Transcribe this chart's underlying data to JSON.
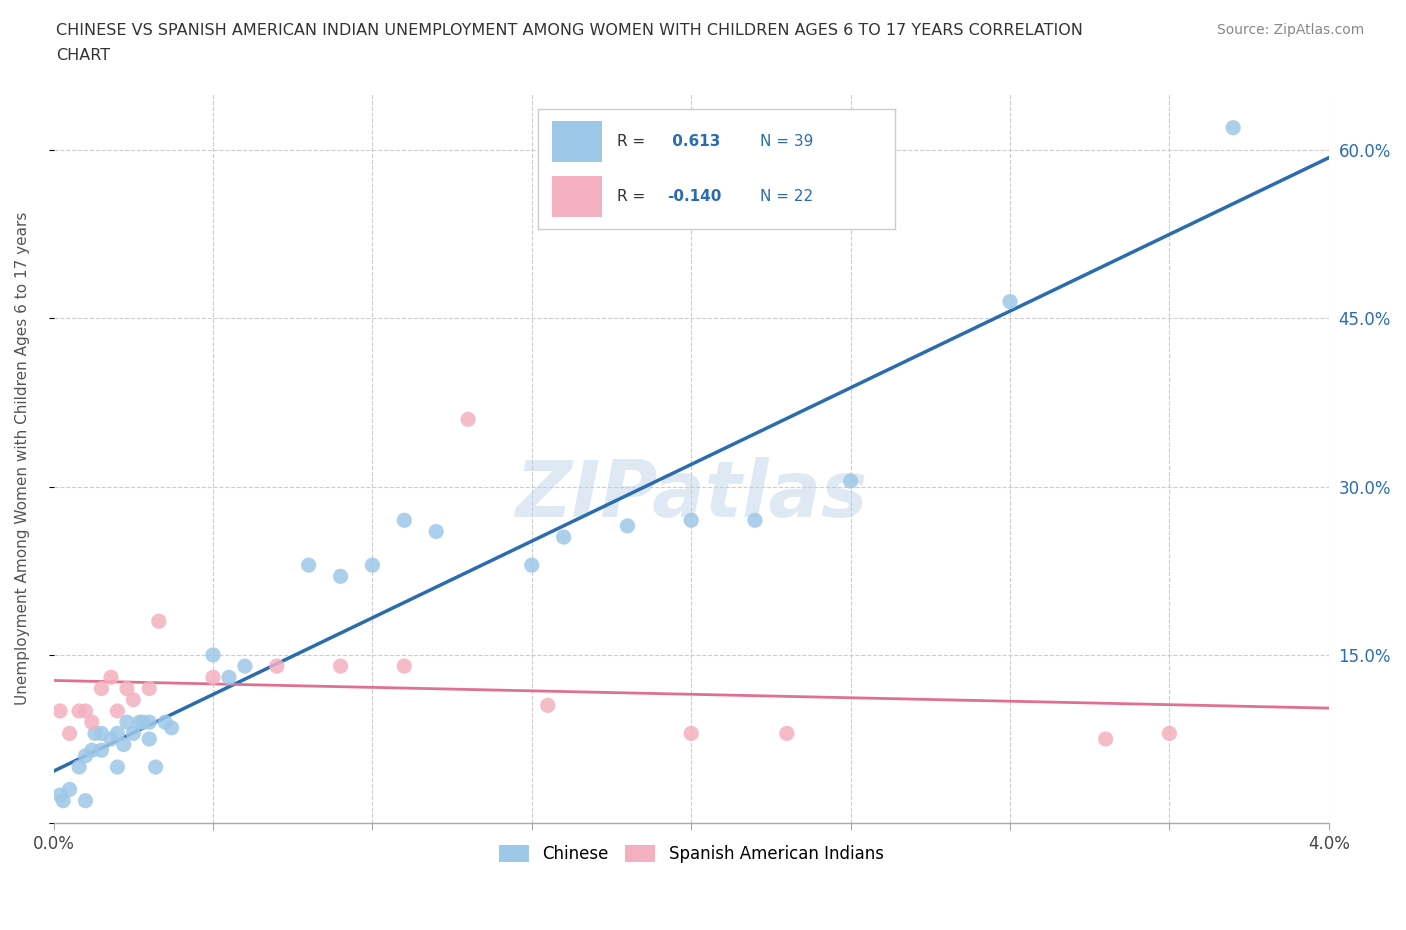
{
  "title": "CHINESE VS SPANISH AMERICAN INDIAN UNEMPLOYMENT AMONG WOMEN WITH CHILDREN AGES 6 TO 17 YEARS CORRELATION\nCHART",
  "source": "Source: ZipAtlas.com",
  "ylabel": "Unemployment Among Women with Children Ages 6 to 17 years",
  "xlim": [
    0.0,
    0.04
  ],
  "ylim": [
    0.0,
    0.65
  ],
  "xticks": [
    0.0,
    0.005,
    0.01,
    0.015,
    0.02,
    0.025,
    0.03,
    0.035,
    0.04
  ],
  "xtick_labels": [
    "0.0%",
    "",
    "",
    "",
    "",
    "",
    "",
    "",
    "4.0%"
  ],
  "ytick_positions": [
    0.0,
    0.15,
    0.3,
    0.45,
    0.6
  ],
  "ytick_labels": [
    "",
    "15.0%",
    "30.0%",
    "45.0%",
    "60.0%"
  ],
  "chinese_R": 0.613,
  "chinese_N": 39,
  "spanish_R": -0.14,
  "spanish_N": 22,
  "chinese_color": "#9ec8e8",
  "spanish_color": "#f4b0c0",
  "trend_chinese_color": "#2b6cb0",
  "trend_spanish_color": "#e07090",
  "background_color": "#ffffff",
  "grid_color": "#cccccc",
  "watermark": "ZIPatlas",
  "chinese_x": [
    0.0002,
    0.0003,
    0.0005,
    0.0008,
    0.001,
    0.001,
    0.0012,
    0.0013,
    0.0015,
    0.0015,
    0.0018,
    0.002,
    0.002,
    0.0022,
    0.0023,
    0.0025,
    0.0027,
    0.0028,
    0.003,
    0.003,
    0.0032,
    0.0035,
    0.0037,
    0.005,
    0.0055,
    0.006,
    0.008,
    0.009,
    0.01,
    0.011,
    0.012,
    0.015,
    0.016,
    0.018,
    0.02,
    0.022,
    0.025,
    0.03,
    0.037
  ],
  "chinese_y": [
    0.025,
    0.02,
    0.03,
    0.05,
    0.02,
    0.06,
    0.065,
    0.08,
    0.065,
    0.08,
    0.075,
    0.05,
    0.08,
    0.07,
    0.09,
    0.08,
    0.09,
    0.09,
    0.09,
    0.075,
    0.05,
    0.09,
    0.085,
    0.15,
    0.13,
    0.14,
    0.23,
    0.22,
    0.23,
    0.27,
    0.26,
    0.23,
    0.255,
    0.265,
    0.27,
    0.27,
    0.305,
    0.465,
    0.62
  ],
  "spanish_x": [
    0.0002,
    0.0005,
    0.0008,
    0.001,
    0.0012,
    0.0015,
    0.0018,
    0.002,
    0.0023,
    0.0025,
    0.003,
    0.0033,
    0.005,
    0.007,
    0.009,
    0.011,
    0.013,
    0.0155,
    0.02,
    0.023,
    0.033,
    0.035
  ],
  "spanish_y": [
    0.1,
    0.08,
    0.1,
    0.1,
    0.09,
    0.12,
    0.13,
    0.1,
    0.12,
    0.11,
    0.12,
    0.18,
    0.13,
    0.14,
    0.14,
    0.14,
    0.36,
    0.105,
    0.08,
    0.08,
    0.075,
    0.08
  ]
}
